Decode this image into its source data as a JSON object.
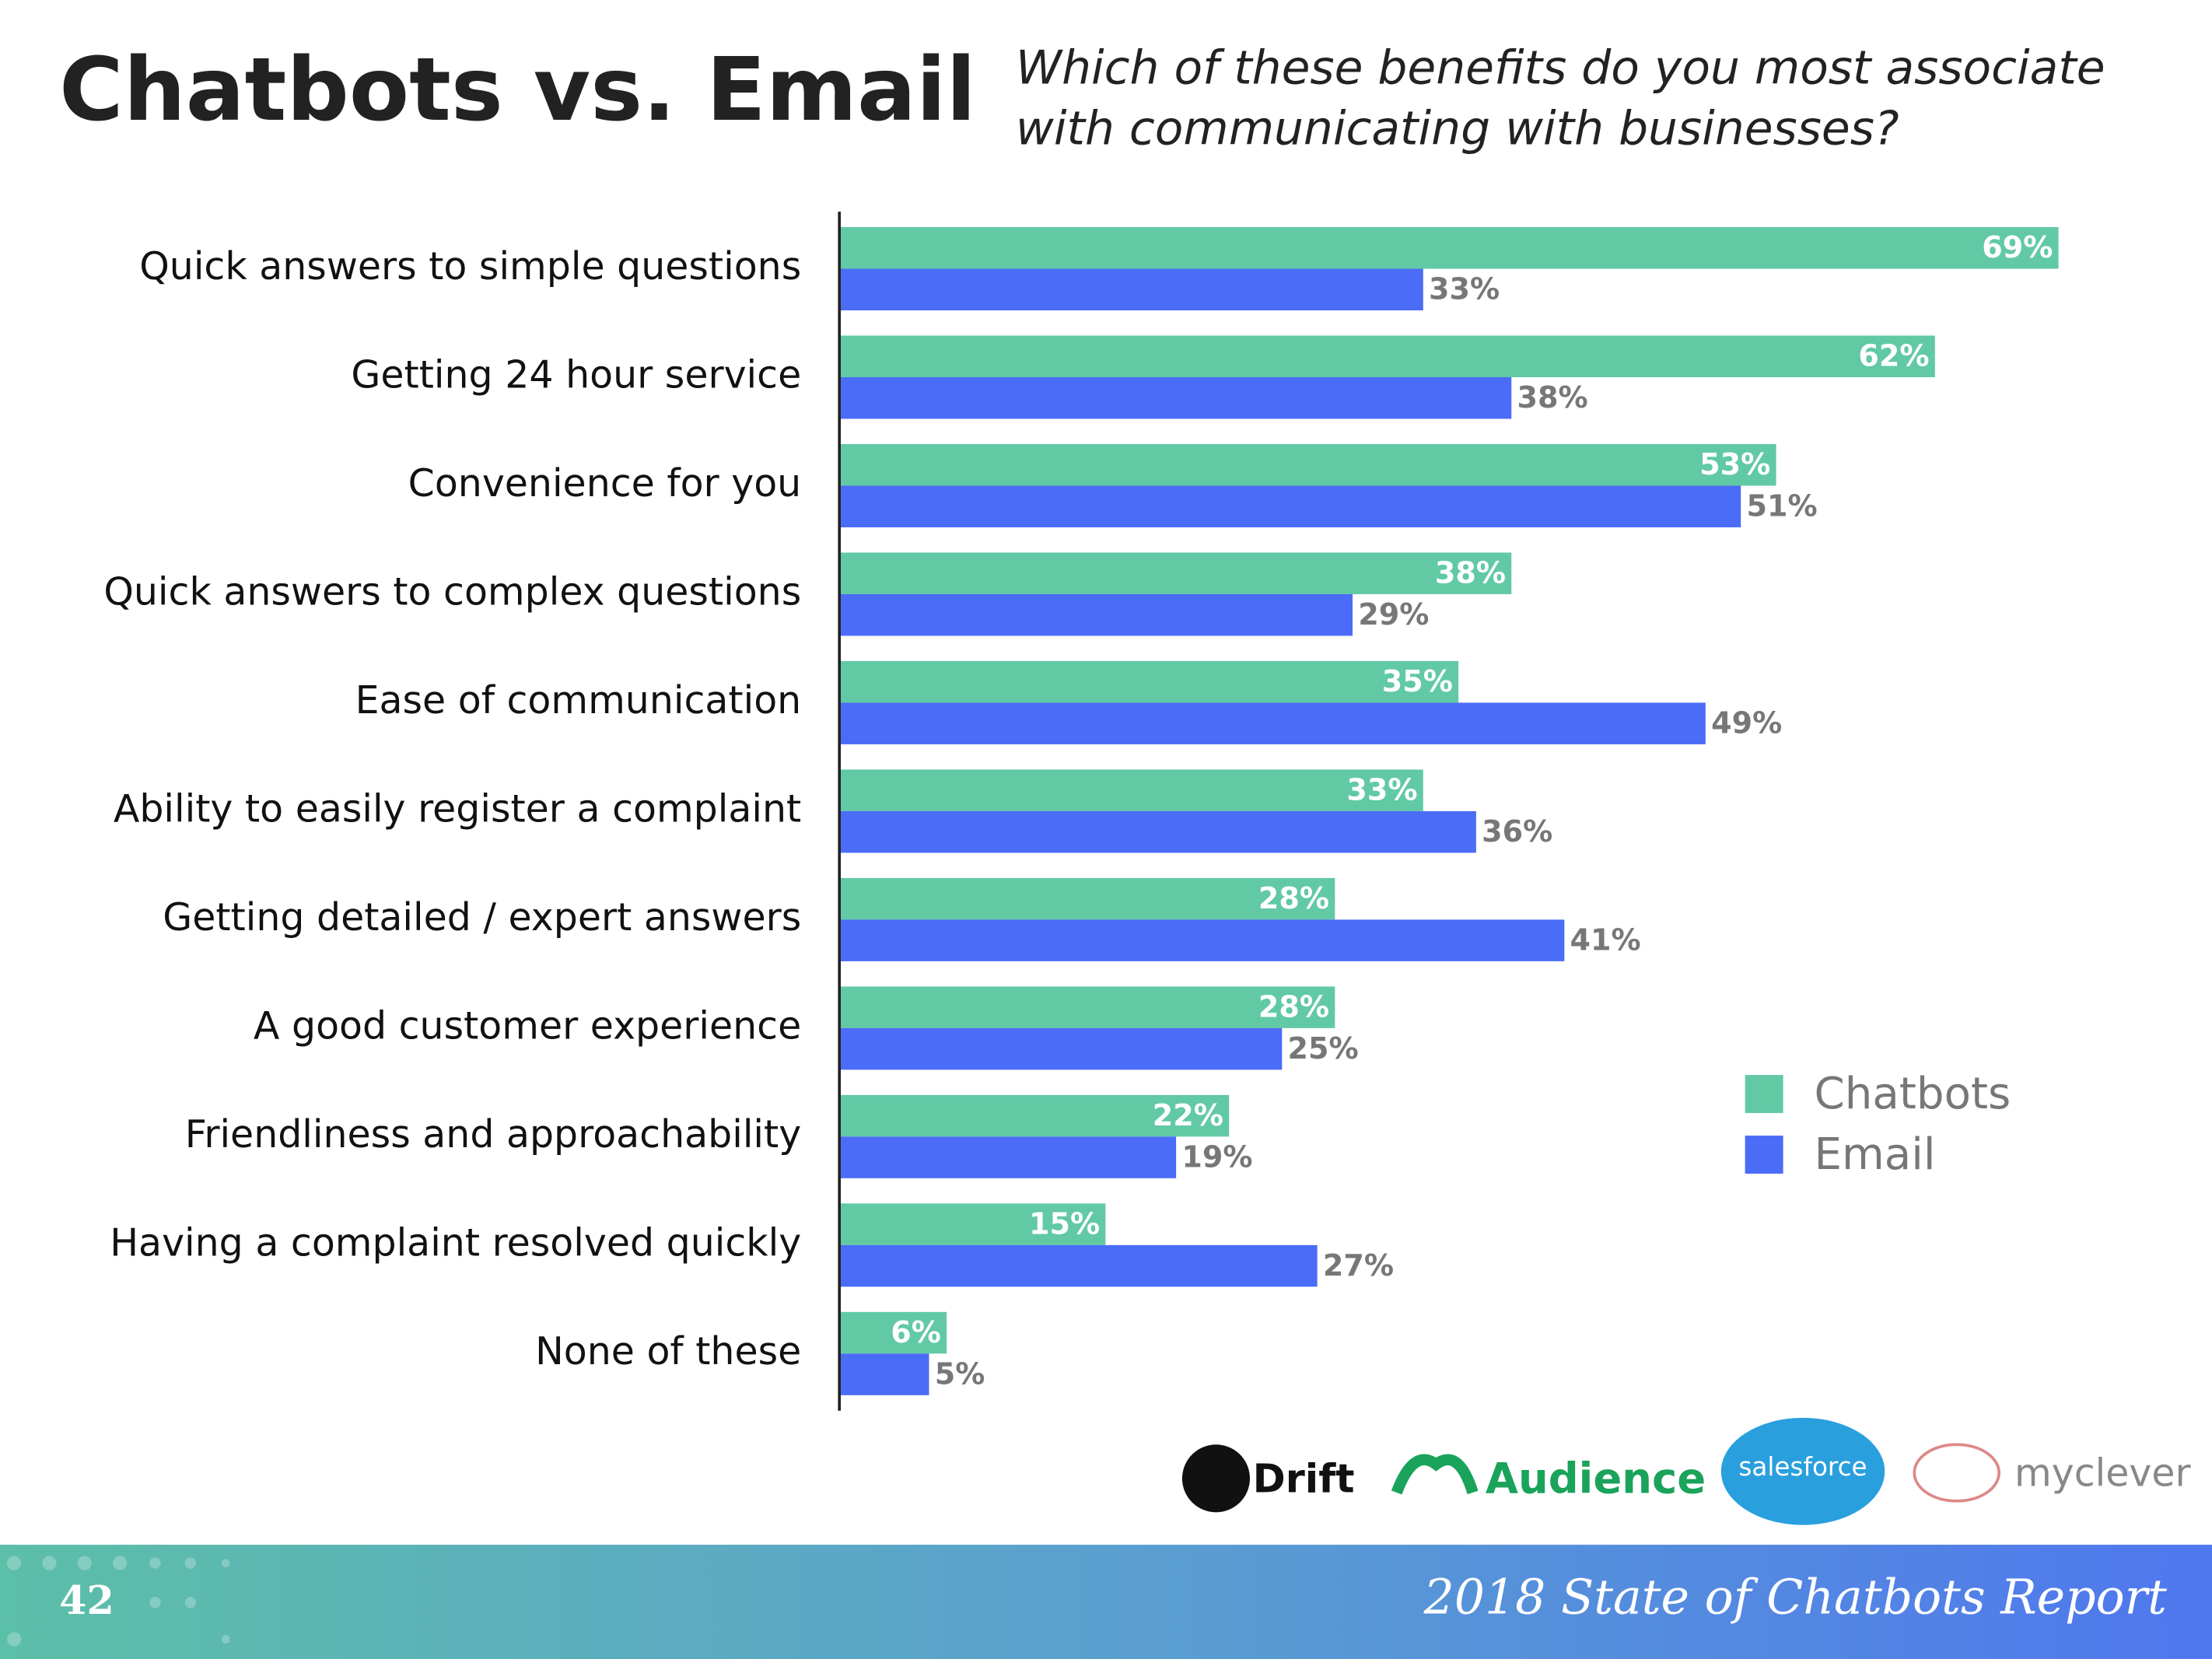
{
  "chart_data": {
    "type": "bar",
    "orientation": "horizontal",
    "title": "Chatbots vs. Email",
    "subtitle": [
      "Which of these benefits do you most associate",
      "with communicating with businesses?"
    ],
    "categories": [
      "Quick answers to simple questions",
      "Getting 24 hour service",
      "Convenience for you",
      "Quick answers to complex questions",
      "Ease of communication",
      "Ability to easily register a complaint",
      "Getting detailed / expert answers",
      "A good customer experience",
      "Friendliness and approachability",
      "Having a complaint resolved quickly",
      "None of these"
    ],
    "series": [
      {
        "name": "Chatbots",
        "color": "#62c9a5",
        "values": [
          69,
          62,
          53,
          38,
          35,
          33,
          28,
          28,
          22,
          15,
          6
        ],
        "value_labels": [
          "69%",
          "62%",
          "53%",
          "38%",
          "35%",
          "33%",
          "28%",
          "28%",
          "22%",
          "15%",
          "6%"
        ]
      },
      {
        "name": "Email",
        "color": "#4a6cf7",
        "values": [
          33,
          38,
          51,
          29,
          49,
          36,
          41,
          25,
          19,
          27,
          5
        ],
        "value_labels": [
          "33%",
          "38%",
          "51%",
          "29%",
          "49%",
          "36%",
          "41%",
          "25%",
          "19%",
          "27%",
          "5%"
        ]
      }
    ]
  },
  "logos": [
    "Drift",
    "Audience",
    "salesforce",
    "myclever"
  ],
  "footer": {
    "page": "42",
    "report": "2018 State of Chatbots Report"
  }
}
